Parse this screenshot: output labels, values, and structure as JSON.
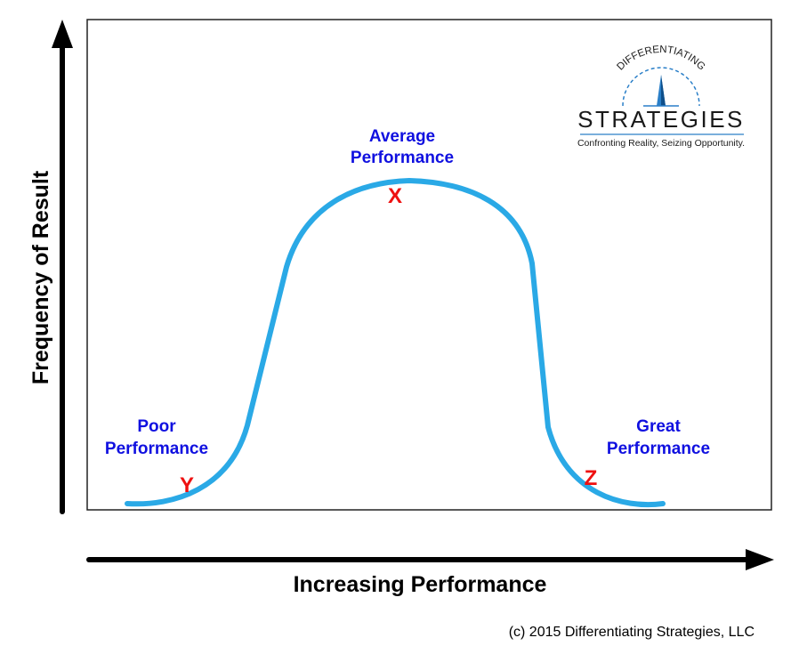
{
  "diagram": {
    "y_axis_label": "Frequency of Result",
    "x_axis_label": "Increasing Performance",
    "curve_color": "#2aa9e6",
    "label_color": "#1010e0",
    "marker_color": "#ee1111",
    "regions": [
      {
        "id": "poor",
        "label_line1": "Poor",
        "label_line2": "Performance",
        "marker": "Y"
      },
      {
        "id": "average",
        "label_line1": "Average",
        "label_line2": "Performance",
        "marker": "X"
      },
      {
        "id": "great",
        "label_line1": "Great",
        "label_line2": "Performance",
        "marker": "Z"
      }
    ]
  },
  "logo": {
    "arc_text": "DIFFERENTIATING",
    "name": "STRATEGIES",
    "tagline": "Confronting Reality, Seizing Opportunity.",
    "accent_color": "#2a7fc8"
  },
  "footer": {
    "copyright": "(c) 2015 Differentiating Strategies, LLC"
  }
}
